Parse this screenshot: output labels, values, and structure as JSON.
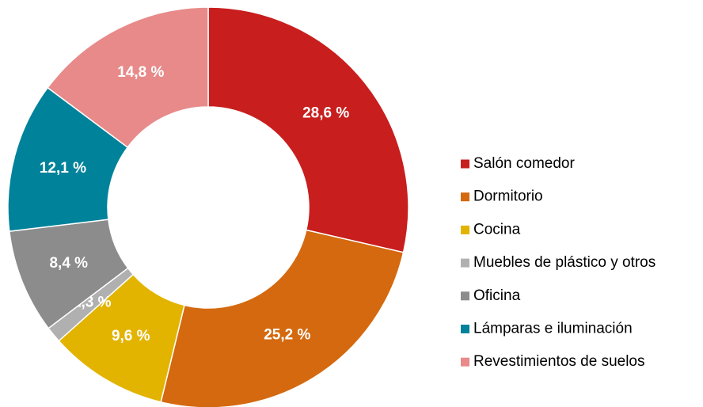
{
  "chart_data": {
    "type": "donut",
    "categories": [
      "Salón comedor",
      "Dormitorio",
      "Cocina",
      "Muebles de plástico y otros",
      "Oficina",
      "Lámparas e iluminación",
      "Revestimientos de suelos"
    ],
    "values": [
      28.6,
      25.2,
      9.6,
      1.3,
      8.4,
      12.1,
      14.8
    ],
    "value_labels": [
      "28,6 %",
      "25,2 %",
      "9,6 %",
      "1,3 %",
      "8,4 %",
      "12,1 %",
      "14,8 %"
    ],
    "colors": [
      "#c81e1e",
      "#d4690f",
      "#e2b400",
      "#b0b0b0",
      "#8c8c8c",
      "#00829b",
      "#e88a8a"
    ],
    "legend": "right"
  }
}
